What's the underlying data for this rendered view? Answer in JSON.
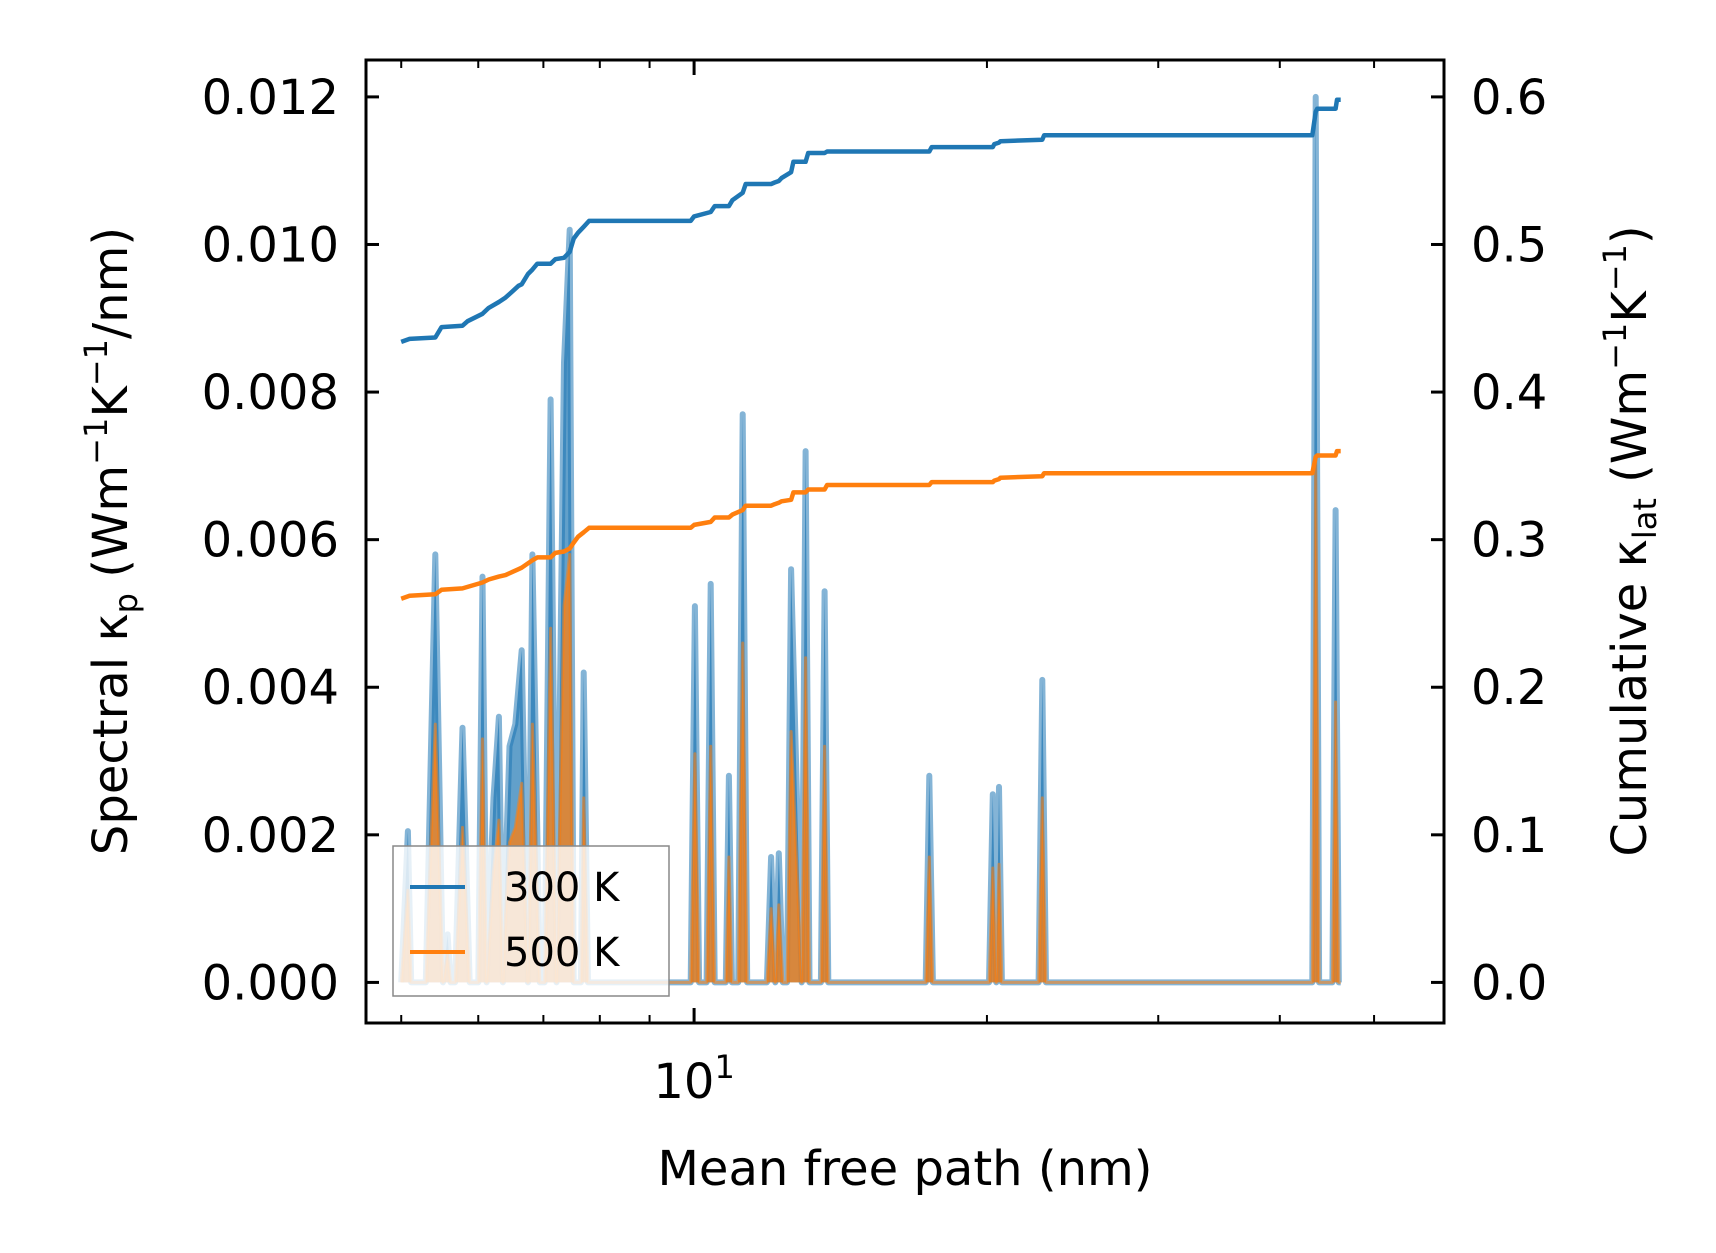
{
  "chart_data": {
    "type": "line",
    "xscale": "log",
    "xlim": [
      4.6,
      59
    ],
    "x_ticks": [
      {
        "value": 10,
        "label": "10",
        "exp": "1"
      }
    ],
    "xlabel": "Mean free path (nm)",
    "y_left": {
      "label_parts": [
        "Spectral κ",
        "p",
        " (Wm",
        "−1",
        "K",
        "−1",
        "/nm)"
      ],
      "lim": [
        -0.00055,
        0.0125
      ],
      "ticks": [
        0.0,
        0.002,
        0.004,
        0.006,
        0.008,
        0.01,
        0.012
      ],
      "tick_labels": [
        "0.000",
        "0.002",
        "0.004",
        "0.006",
        "0.008",
        "0.010",
        "0.012"
      ]
    },
    "y_right": {
      "label_parts": [
        "Cumulative κ",
        "lat",
        " (Wm",
        "−1",
        "K",
        "−1",
        ")"
      ],
      "lim": [
        -0.0275,
        0.625
      ],
      "ticks": [
        0.0,
        0.1,
        0.2,
        0.3,
        0.4,
        0.5,
        0.6
      ],
      "tick_labels": [
        "0.0",
        "0.1",
        "0.2",
        "0.3",
        "0.4",
        "0.5",
        "0.6"
      ]
    },
    "legend": {
      "location": "lower-left",
      "entries": [
        "300 K",
        "500 K"
      ]
    },
    "spectral_300K": {
      "x": [
        5.0,
        5.08,
        5.12,
        5.18,
        5.3,
        5.42,
        5.52,
        5.58,
        5.62,
        5.68,
        5.78,
        5.88,
        6.0,
        6.06,
        6.12,
        6.22,
        6.3,
        6.36,
        6.4,
        6.46,
        6.55,
        6.65,
        6.75,
        6.82,
        6.88,
        6.94,
        7.02,
        7.12,
        7.22,
        7.35,
        7.45,
        7.52,
        7.58,
        7.65,
        7.7,
        7.78,
        7.9,
        7.98,
        8.05,
        8.15,
        9.92,
        10.02,
        10.12,
        10.3,
        10.4,
        10.5,
        10.78,
        10.86,
        10.94,
        11.1,
        11.22,
        11.34,
        11.88,
        12.0,
        12.12,
        12.22,
        12.34,
        12.46,
        12.58,
        12.9,
        13.02,
        13.14,
        13.26,
        13.38,
        13.5,
        13.62,
        13.74,
        13.86,
        13.98,
        17.3,
        17.45,
        17.6,
        20.1,
        20.28,
        20.45,
        20.58,
        20.72,
        22.6,
        22.8,
        23.0,
        43.2,
        43.55,
        43.9,
        44.3,
        45.3,
        45.65,
        46.0,
        46.2
      ],
      "y": [
        0,
        0.00205,
        0,
        0,
        0,
        0.0058,
        0,
        0.00065,
        0,
        0,
        0.00345,
        0,
        0,
        0.0055,
        0,
        0.0025,
        0.0036,
        0,
        0.0015,
        0.0032,
        0.0035,
        0.0045,
        0,
        0.0058,
        0.003,
        0,
        0,
        0.0079,
        0,
        0.0084,
        0.0102,
        0,
        0,
        0,
        0.0042,
        0,
        0,
        0,
        0,
        0,
        0,
        0.0051,
        0,
        0,
        0.0054,
        0,
        0,
        0.0028,
        0,
        0,
        0.0077,
        0,
        0,
        0.0017,
        0,
        0.00175,
        0,
        0,
        0.0056,
        0,
        0.0072,
        0,
        0,
        0,
        0,
        0.0053,
        0,
        0,
        0,
        0,
        0.0028,
        0,
        0,
        0.00255,
        0,
        0.00265,
        0,
        0,
        0.0041,
        0,
        0,
        0.012,
        0,
        0,
        0,
        0.0064,
        0,
        0
      ]
    },
    "spectral_500K": {
      "x": [
        5.0,
        5.08,
        5.12,
        5.18,
        5.3,
        5.42,
        5.52,
        5.58,
        5.62,
        5.68,
        5.78,
        5.88,
        6.0,
        6.06,
        6.12,
        6.22,
        6.3,
        6.36,
        6.4,
        6.46,
        6.55,
        6.65,
        6.75,
        6.82,
        6.88,
        6.94,
        7.02,
        7.12,
        7.22,
        7.35,
        7.45,
        7.52,
        7.58,
        7.65,
        7.7,
        7.78,
        7.9,
        7.98,
        8.05,
        8.15,
        9.92,
        10.02,
        10.12,
        10.3,
        10.4,
        10.5,
        10.78,
        10.86,
        10.94,
        11.1,
        11.22,
        11.34,
        11.88,
        12.0,
        12.12,
        12.22,
        12.34,
        12.46,
        12.58,
        12.9,
        13.02,
        13.14,
        13.26,
        13.38,
        13.5,
        13.62,
        13.74,
        13.86,
        13.98,
        17.3,
        17.45,
        17.6,
        20.1,
        20.28,
        20.45,
        20.58,
        20.72,
        22.6,
        22.8,
        23.0,
        43.2,
        43.55,
        43.9,
        44.3,
        45.3,
        45.65,
        46.0,
        46.2
      ],
      "y": [
        0,
        0.00125,
        0,
        0,
        0,
        0.0035,
        0,
        0.0004,
        0,
        0,
        0.0021,
        0,
        0,
        0.0033,
        0,
        0.0015,
        0.0022,
        0,
        0.0009,
        0.0019,
        0.0021,
        0.0027,
        0,
        0.0035,
        0.0018,
        0,
        0,
        0.0048,
        0,
        0.0051,
        0.0058,
        0,
        0,
        0,
        0.0025,
        0,
        0,
        0,
        0,
        0,
        0,
        0.0031,
        0,
        0,
        0.0032,
        0,
        0,
        0.0017,
        0,
        0,
        0.0046,
        0,
        0,
        0.001,
        0,
        0.00105,
        0,
        0,
        0.0034,
        0,
        0.0044,
        0,
        0,
        0,
        0,
        0.0032,
        0,
        0,
        0,
        0,
        0.0017,
        0,
        0,
        0.00155,
        0,
        0.0016,
        0,
        0,
        0.0025,
        0,
        0,
        0.0071,
        0,
        0,
        0,
        0.0038,
        0,
        0
      ]
    },
    "cumulative_300K": {
      "x": [
        5.0,
        5.1,
        5.42,
        5.5,
        5.78,
        5.85,
        6.06,
        6.15,
        6.3,
        6.4,
        6.5,
        6.6,
        6.65,
        6.75,
        6.82,
        6.9,
        7.12,
        7.2,
        7.35,
        7.45,
        7.52,
        7.6,
        7.7,
        7.8,
        9.92,
        10.0,
        10.4,
        10.5,
        10.86,
        10.95,
        11.22,
        11.3,
        12.0,
        12.1,
        12.22,
        12.3,
        12.58,
        12.65,
        13.02,
        13.1,
        13.62,
        13.7,
        17.45,
        17.55,
        20.28,
        20.35,
        20.58,
        20.65,
        22.8,
        22.9,
        43.2,
        43.55,
        43.7,
        45.65,
        45.8,
        46.2
      ],
      "y": [
        0.434,
        0.436,
        0.437,
        0.444,
        0.445,
        0.448,
        0.453,
        0.457,
        0.461,
        0.464,
        0.468,
        0.472,
        0.473,
        0.48,
        0.483,
        0.487,
        0.487,
        0.49,
        0.491,
        0.495,
        0.504,
        0.508,
        0.512,
        0.516,
        0.516,
        0.519,
        0.522,
        0.526,
        0.526,
        0.53,
        0.535,
        0.541,
        0.541,
        0.542,
        0.543,
        0.545,
        0.549,
        0.556,
        0.556,
        0.562,
        0.562,
        0.563,
        0.563,
        0.566,
        0.566,
        0.568,
        0.569,
        0.57,
        0.571,
        0.574,
        0.574,
        0.59,
        0.592,
        0.592,
        0.598,
        0.598
      ]
    },
    "cumulative_500K": {
      "x": [
        5.0,
        5.1,
        5.42,
        5.5,
        5.78,
        5.85,
        6.06,
        6.15,
        6.3,
        6.4,
        6.5,
        6.6,
        6.65,
        6.75,
        6.82,
        6.9,
        7.12,
        7.2,
        7.35,
        7.45,
        7.52,
        7.6,
        7.7,
        7.8,
        9.92,
        10.0,
        10.4,
        10.5,
        10.86,
        10.95,
        11.22,
        11.3,
        12.0,
        12.1,
        12.22,
        12.3,
        12.58,
        12.65,
        13.02,
        13.1,
        13.62,
        13.7,
        17.45,
        17.55,
        20.28,
        20.35,
        20.58,
        20.65,
        22.8,
        22.9,
        43.2,
        43.55,
        43.7,
        45.65,
        45.8,
        46.2
      ],
      "y": [
        0.26,
        0.262,
        0.263,
        0.266,
        0.267,
        0.268,
        0.271,
        0.273,
        0.275,
        0.276,
        0.278,
        0.28,
        0.281,
        0.284,
        0.286,
        0.288,
        0.288,
        0.291,
        0.292,
        0.294,
        0.298,
        0.302,
        0.305,
        0.308,
        0.308,
        0.31,
        0.312,
        0.315,
        0.315,
        0.317,
        0.32,
        0.323,
        0.323,
        0.324,
        0.325,
        0.326,
        0.327,
        0.332,
        0.332,
        0.334,
        0.334,
        0.337,
        0.337,
        0.339,
        0.339,
        0.34,
        0.341,
        0.342,
        0.343,
        0.345,
        0.345,
        0.356,
        0.357,
        0.357,
        0.36,
        0.36
      ]
    },
    "colors": {
      "s300": "#1f77b4",
      "s500": "#ff7f0e"
    }
  }
}
